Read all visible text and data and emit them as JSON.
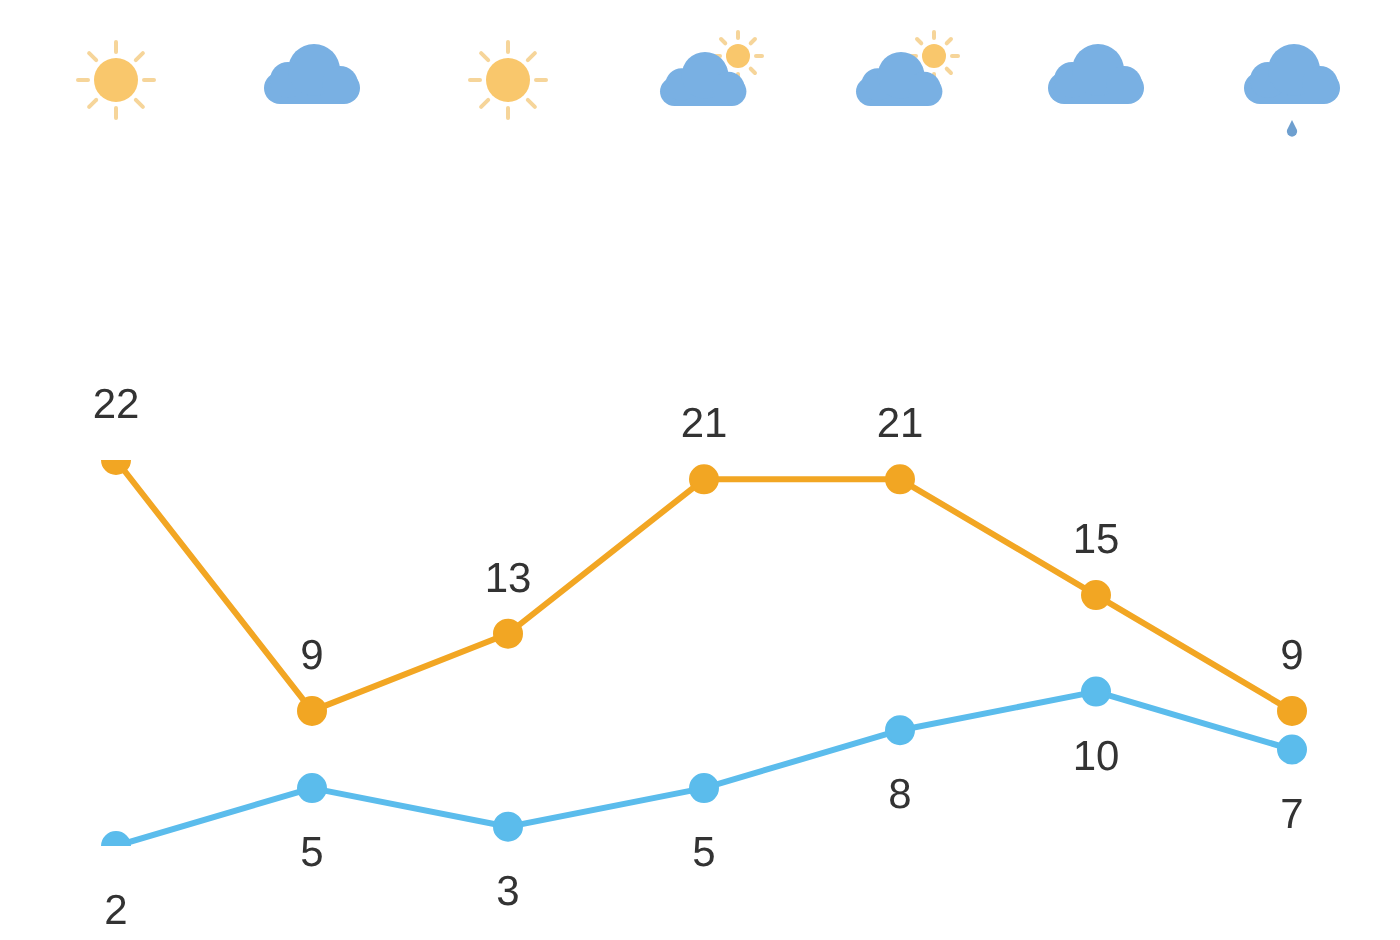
{
  "chart_data": {
    "type": "line",
    "categories": [
      null,
      null,
      null,
      null,
      null,
      null,
      null
    ],
    "series": [
      {
        "color": "#f2a623",
        "values": [
          22,
          9,
          13,
          21,
          21,
          15,
          9
        ]
      },
      {
        "color": "#5bbcec",
        "values": [
          2,
          5,
          3,
          5,
          8,
          10,
          7
        ]
      }
    ],
    "data_labels": true,
    "marker": "circle",
    "line_style": "solid",
    "tick_labels": false
  }
}
